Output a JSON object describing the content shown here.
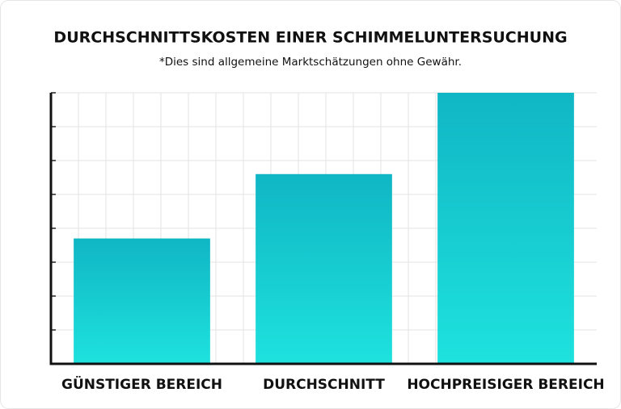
{
  "chart_data": {
    "type": "bar",
    "title": "DURCHSCHNITTSKOSTEN EINER SCHIMMELUNTERSUCHUNG",
    "subtitle": "*Dies sind allgemeine Marktschätzungen ohne Gewähr.",
    "categories": [
      "GÜNSTIGER BEREICH",
      "DURCHSCHNITT",
      "HOCHPREISIGER BEREICH"
    ],
    "values": [
      3.7,
      5.6,
      8
    ],
    "ylim": [
      0,
      8
    ],
    "yticks": [
      0,
      1,
      2,
      3,
      4,
      5,
      6,
      7,
      8
    ],
    "grid": true
  }
}
